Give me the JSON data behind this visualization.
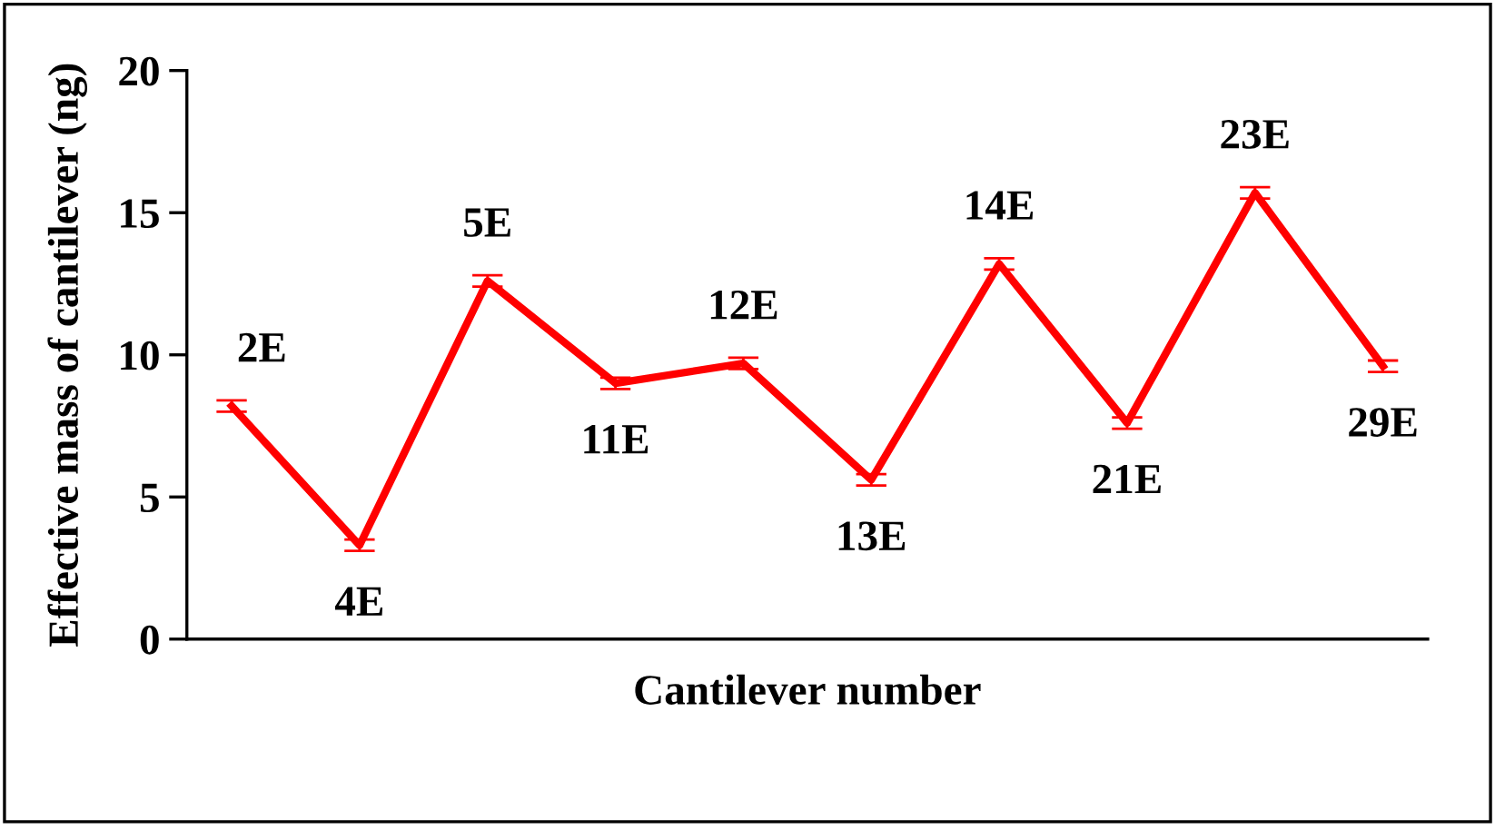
{
  "chart_data": {
    "type": "line",
    "xlabel": "Cantilever number",
    "ylabel": "Effective mass of cantilever (ng)",
    "categories": [
      "2E",
      "4E",
      "5E",
      "11E",
      "12E",
      "13E",
      "14E",
      "21E",
      "23E",
      "29E"
    ],
    "series": [
      {
        "color": "#ff0000",
        "values": [
          8.2,
          3.3,
          12.6,
          9.0,
          9.7,
          5.6,
          13.2,
          7.6,
          15.7,
          9.6
        ],
        "errors": [
          0.2,
          0.2,
          0.2,
          0.2,
          0.2,
          0.2,
          0.2,
          0.2,
          0.2,
          0.2
        ]
      }
    ],
    "ylim": [
      0,
      20
    ],
    "yticks": [
      0,
      5,
      10,
      15,
      20
    ],
    "grid": false,
    "legend": false,
    "tick_labels": "y",
    "marker": "none",
    "line_style": "solid"
  }
}
